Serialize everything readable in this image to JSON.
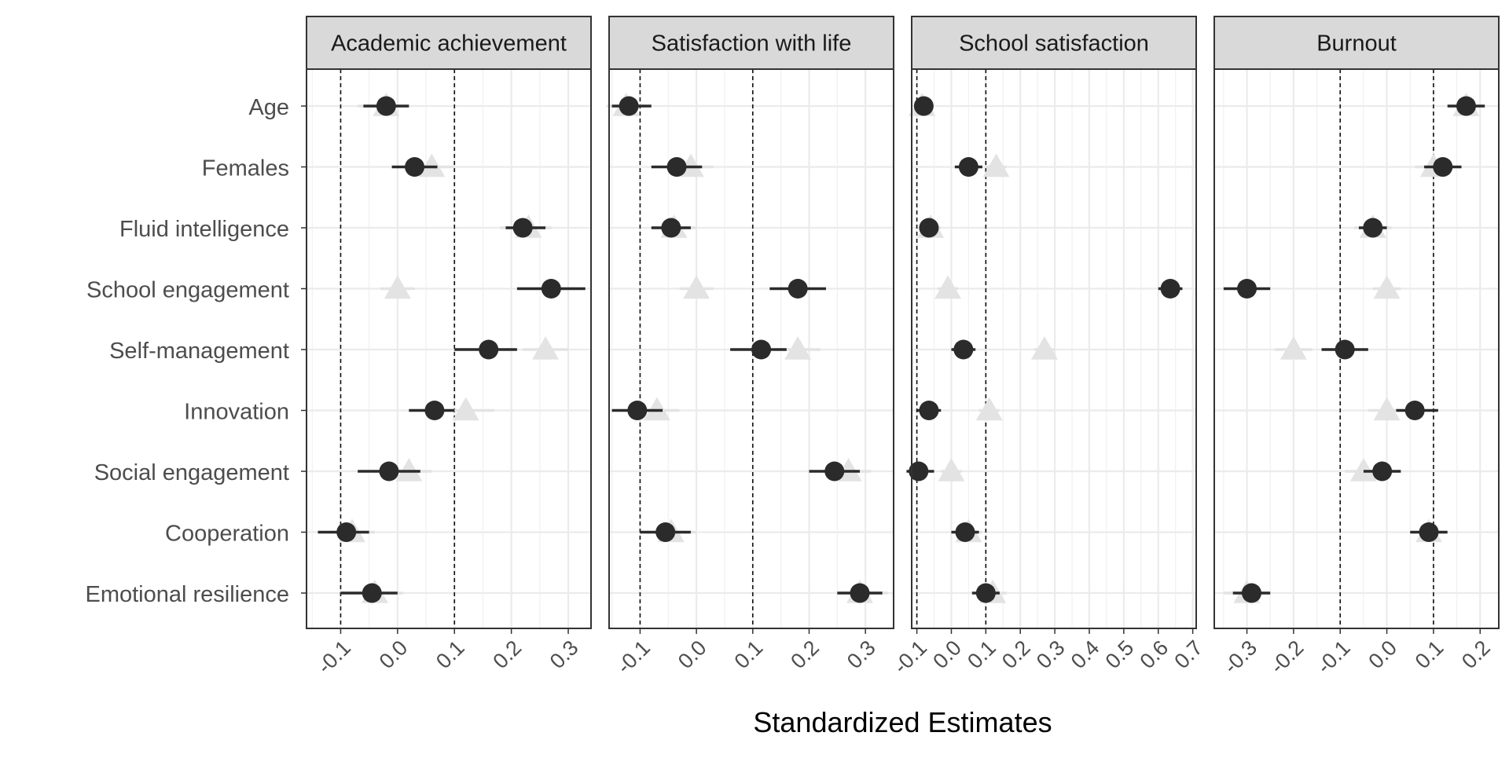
{
  "chart_data": {
    "type": "scatter",
    "subtype": "faceted-coefficient-plot",
    "xlabel": "Standardized Estimates",
    "ylabel": "",
    "categories": [
      "Age",
      "Females",
      "Fluid intelligence",
      "School engagement",
      "Self-management",
      "Innovation",
      "Social engagement",
      "Cooperation",
      "Emotional resilience"
    ],
    "grid": true,
    "legend": "none",
    "reference_lines": [
      -0.1,
      0.1
    ],
    "reference_line_style": "dashed",
    "series_styles": {
      "circle": {
        "marker": "circle",
        "color": "#2b2b2b"
      },
      "triangle": {
        "marker": "triangle",
        "color": "#e3e3e3"
      }
    },
    "facets": [
      {
        "title": "Academic achievement",
        "xlim": [
          -0.16,
          0.34
        ],
        "ticks": [
          -0.1,
          0.0,
          0.1,
          0.2,
          0.3
        ],
        "tick_labels": [
          "-0.1",
          "0.0",
          "0.1",
          "0.2",
          "0.3"
        ],
        "circle": {
          "values": [
            -0.02,
            0.03,
            0.22,
            0.27,
            0.16,
            0.065,
            -0.015,
            -0.09,
            -0.045
          ],
          "ci_low": [
            -0.06,
            -0.01,
            0.19,
            0.21,
            0.1,
            0.02,
            -0.07,
            -0.14,
            -0.1
          ],
          "ci_high": [
            0.02,
            0.07,
            0.26,
            0.33,
            0.21,
            0.1,
            0.04,
            -0.05,
            0.0
          ]
        },
        "triangle": {
          "values": [
            -0.02,
            0.06,
            0.23,
            0.0,
            0.26,
            0.12,
            0.02,
            -0.08,
            -0.04
          ],
          "ci_low": [
            -0.07,
            0.02,
            0.18,
            -0.03,
            0.22,
            0.08,
            -0.02,
            -0.12,
            -0.1
          ],
          "ci_high": [
            0.02,
            0.1,
            0.27,
            0.03,
            0.3,
            0.17,
            0.06,
            -0.04,
            0.01
          ]
        }
      },
      {
        "title": "Satisfaction with life",
        "xlim": [
          -0.155,
          0.35
        ],
        "ticks": [
          -0.1,
          0.0,
          0.1,
          0.2,
          0.3
        ],
        "tick_labels": [
          "-0.1",
          "0.0",
          "0.1",
          "0.2",
          "0.3"
        ],
        "circle": {
          "values": [
            -0.12,
            -0.035,
            -0.045,
            0.18,
            0.115,
            -0.105,
            0.245,
            -0.055,
            0.29
          ],
          "ci_low": [
            -0.15,
            -0.08,
            -0.08,
            0.13,
            0.06,
            -0.15,
            0.2,
            -0.1,
            0.25
          ],
          "ci_high": [
            -0.08,
            0.01,
            -0.01,
            0.23,
            0.16,
            -0.06,
            0.29,
            -0.01,
            0.33
          ]
        },
        "triangle": {
          "values": [
            -0.125,
            -0.01,
            -0.04,
            0.0,
            0.18,
            -0.07,
            0.27,
            -0.045,
            0.29
          ],
          "ci_low": [
            -0.16,
            -0.05,
            -0.08,
            -0.03,
            0.14,
            -0.11,
            0.23,
            -0.09,
            0.25
          ],
          "ci_high": [
            -0.09,
            0.03,
            0.0,
            0.03,
            0.22,
            -0.03,
            0.31,
            0.0,
            0.34
          ]
        }
      },
      {
        "title": "School satisfaction",
        "xlim": [
          -0.115,
          0.71
        ],
        "ticks": [
          -0.1,
          0.0,
          0.1,
          0.2,
          0.3,
          0.4,
          0.5,
          0.6,
          0.7
        ],
        "tick_labels": [
          "-0.1",
          "0.0",
          "0.1",
          "0.2",
          "0.3",
          "0.4",
          "0.5",
          "0.6",
          "0.7"
        ],
        "circle": {
          "values": [
            -0.08,
            0.05,
            -0.065,
            0.635,
            0.035,
            -0.065,
            -0.095,
            0.04,
            0.1
          ],
          "ci_low": [
            -0.1,
            0.01,
            -0.09,
            0.6,
            0.0,
            -0.1,
            -0.13,
            0.0,
            0.06
          ],
          "ci_high": [
            -0.06,
            0.09,
            -0.04,
            0.67,
            0.07,
            -0.03,
            -0.05,
            0.08,
            0.14
          ]
        },
        "triangle": {
          "values": [
            -0.085,
            0.13,
            -0.06,
            -0.01,
            0.27,
            0.11,
            0.0,
            0.05,
            0.12
          ],
          "ci_low": [
            -0.11,
            0.1,
            -0.09,
            -0.04,
            0.24,
            0.08,
            -0.03,
            0.01,
            0.08
          ],
          "ci_high": [
            -0.06,
            0.16,
            -0.03,
            0.02,
            0.3,
            0.14,
            0.03,
            0.09,
            0.16
          ]
        }
      },
      {
        "title": "Burnout",
        "xlim": [
          -0.37,
          0.24
        ],
        "ticks": [
          -0.3,
          -0.2,
          -0.1,
          0.0,
          0.1,
          0.2
        ],
        "tick_labels": [
          "-0.3",
          "-0.2",
          "-0.1",
          "0.0",
          "0.1",
          "0.2"
        ],
        "circle": {
          "values": [
            0.17,
            0.12,
            -0.03,
            -0.3,
            -0.09,
            0.06,
            -0.01,
            0.09,
            -0.29
          ],
          "ci_low": [
            0.13,
            0.08,
            -0.06,
            -0.35,
            -0.14,
            0.02,
            -0.05,
            0.05,
            -0.33
          ],
          "ci_high": [
            0.21,
            0.16,
            0.0,
            -0.25,
            -0.04,
            0.11,
            0.03,
            0.13,
            -0.25
          ]
        },
        "triangle": {
          "values": [
            0.17,
            0.1,
            -0.03,
            0.0,
            -0.2,
            0.0,
            -0.05,
            0.09,
            -0.3
          ],
          "ci_low": [
            0.13,
            0.06,
            -0.07,
            -0.03,
            -0.24,
            -0.04,
            -0.09,
            0.05,
            -0.35
          ],
          "ci_high": [
            0.21,
            0.14,
            0.01,
            0.03,
            -0.16,
            0.04,
            -0.01,
            0.13,
            -0.25
          ]
        }
      }
    ]
  }
}
